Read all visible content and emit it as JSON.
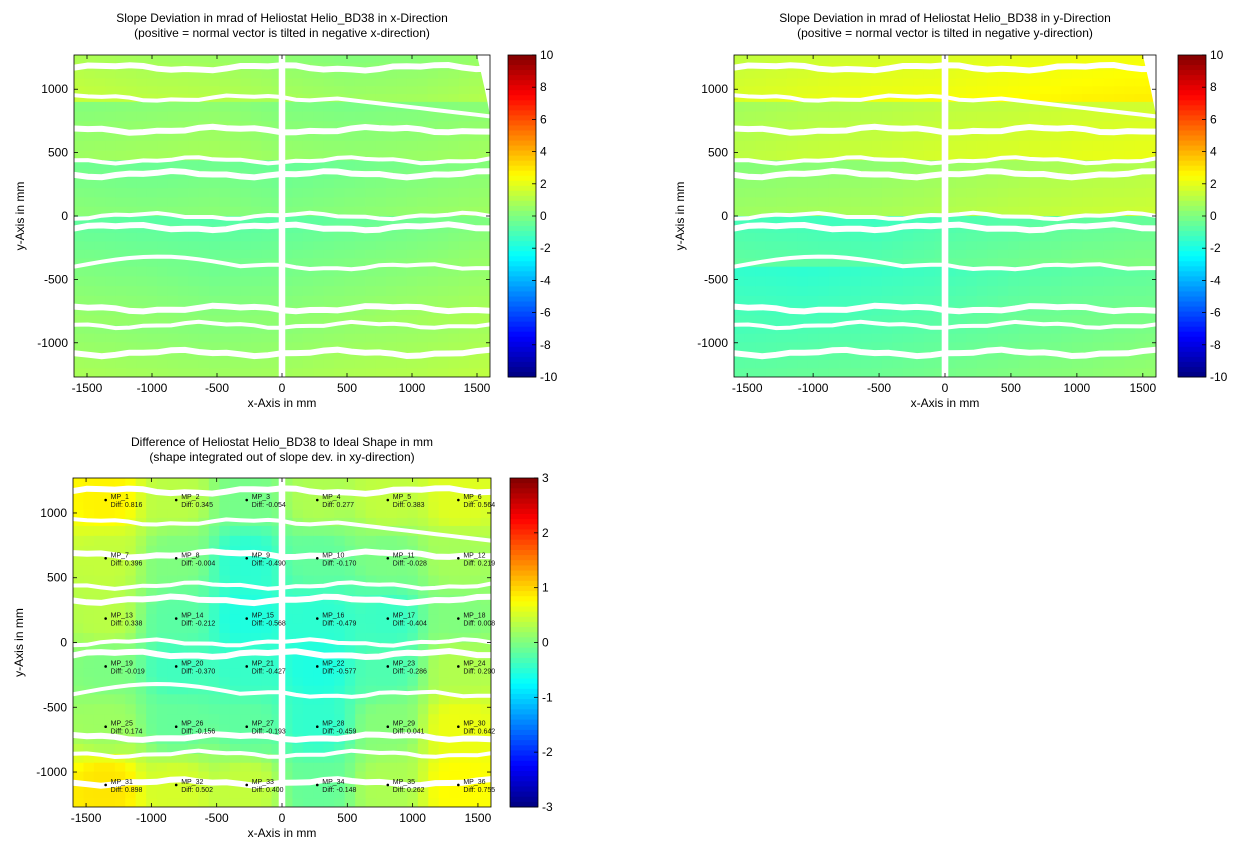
{
  "colors": {
    "white_gap": "#ffffff",
    "frame": "#000000"
  },
  "chart_data": [
    {
      "type": "heatmap",
      "title": "Slope Deviation in mrad of Heliostat Helio_BD38 in x-Direction",
      "subtitle": "(positive = normal vector is tilted in negative x-direction)",
      "xlabel": "x-Axis in mm",
      "ylabel": "y-Axis in mm",
      "xlim": [
        -1600,
        1600
      ],
      "ylim": [
        -1270,
        1270
      ],
      "xticks": [
        -1500,
        -1000,
        -500,
        0,
        500,
        1000,
        1500
      ],
      "yticks": [
        1000,
        500,
        0,
        -500,
        -1000
      ],
      "colorbar": {
        "min": -10,
        "max": 10,
        "ticks": [
          10,
          8,
          6,
          4,
          2,
          0,
          -2,
          -4,
          -6,
          -8,
          -10
        ]
      },
      "facet_values": [
        [
          1.2,
          1.0,
          0.9,
          0.6,
          0.4,
          0.5,
          0.8
        ],
        [
          0.4,
          0.5,
          0.6,
          0.3,
          0.2,
          0.3,
          0.5
        ],
        [
          0.0,
          -0.1,
          0.0,
          -0.2,
          0.0,
          0.2,
          0.4
        ],
        [
          -0.3,
          -0.4,
          -0.5,
          -0.4,
          -0.2,
          0.0,
          0.3
        ],
        [
          0.3,
          0.2,
          0.0,
          0.1,
          0.3,
          0.5,
          0.7
        ],
        [
          0.6,
          0.5,
          0.4,
          0.5,
          0.7,
          0.8,
          1.0
        ]
      ]
    },
    {
      "type": "heatmap",
      "title": "Slope Deviation in mrad of Heliostat Helio_BD38 in y-Direction",
      "subtitle": "(positive = normal vector is tilted in negative y-direction)",
      "xlabel": "x-Axis in mm",
      "ylabel": "y-Axis in mm",
      "xlim": [
        -1600,
        1600
      ],
      "ylim": [
        -1270,
        1270
      ],
      "xticks": [
        -1500,
        -1000,
        -500,
        0,
        500,
        1000,
        1500
      ],
      "yticks": [
        1000,
        500,
        0,
        -500,
        -1000
      ],
      "colorbar": {
        "min": -10,
        "max": 10,
        "ticks": [
          10,
          8,
          6,
          4,
          2,
          0,
          -2,
          -4,
          -6,
          -8,
          -10
        ]
      },
      "facet_values": [
        [
          1.6,
          1.8,
          2.0,
          2.1,
          2.3,
          2.5,
          2.6
        ],
        [
          1.0,
          1.2,
          1.3,
          1.5,
          1.6,
          1.8,
          1.9
        ],
        [
          0.4,
          0.5,
          0.6,
          0.8,
          1.0,
          1.2,
          1.3
        ],
        [
          -0.8,
          -0.9,
          -1.0,
          -0.7,
          -0.5,
          -0.3,
          -0.2
        ],
        [
          -1.2,
          -1.3,
          -1.1,
          -0.9,
          -0.6,
          -0.4,
          -0.3
        ],
        [
          -0.8,
          -0.7,
          -0.6,
          -0.4,
          -0.2,
          0.0,
          0.2
        ]
      ]
    },
    {
      "type": "heatmap",
      "title": "Difference of Heliostat Helio_BD38 to Ideal Shape in mm",
      "subtitle": "(shape integrated out of slope dev. in xy-direction)",
      "xlabel": "x-Axis in mm",
      "ylabel": "y-Axis in mm",
      "xlim": [
        -1600,
        1600
      ],
      "ylim": [
        -1270,
        1270
      ],
      "xticks": [
        -1500,
        -1000,
        -500,
        0,
        500,
        1000,
        1500
      ],
      "yticks": [
        1000,
        500,
        0,
        -500,
        -1000
      ],
      "colorbar": {
        "min": -3,
        "max": 3,
        "ticks": [
          3,
          2,
          1,
          0,
          -1,
          -2,
          -3
        ]
      },
      "measurement_points": [
        {
          "name": "MP_1",
          "diff": "Diff: 0.816",
          "x": -1350,
          "y": 1100
        },
        {
          "name": "MP_2",
          "diff": "Diff: 0.345",
          "x": -810,
          "y": 1100
        },
        {
          "name": "MP_3",
          "diff": "Diff: -0.054",
          "x": -270,
          "y": 1100
        },
        {
          "name": "MP_4",
          "diff": "Diff: 0.277",
          "x": 270,
          "y": 1100
        },
        {
          "name": "MP_5",
          "diff": "Diff: 0.383",
          "x": 810,
          "y": 1100
        },
        {
          "name": "MP_6",
          "diff": "Diff: 0.564",
          "x": 1350,
          "y": 1100
        },
        {
          "name": "MP_7",
          "diff": "Diff: 0.396",
          "x": -1350,
          "y": 650
        },
        {
          "name": "MP_8",
          "diff": "Diff: -0.004",
          "x": -810,
          "y": 650
        },
        {
          "name": "MP_9",
          "diff": "Diff: -0.490",
          "x": -270,
          "y": 650
        },
        {
          "name": "MP_10",
          "diff": "Diff: -0.170",
          "x": 270,
          "y": 650
        },
        {
          "name": "MP_11",
          "diff": "Diff: -0.028",
          "x": 810,
          "y": 650
        },
        {
          "name": "MP_12",
          "diff": "Diff: 0.219",
          "x": 1350,
          "y": 650
        },
        {
          "name": "MP_13",
          "diff": "Diff: 0.338",
          "x": -1350,
          "y": 185
        },
        {
          "name": "MP_14",
          "diff": "Diff: -0.212",
          "x": -810,
          "y": 185
        },
        {
          "name": "MP_15",
          "diff": "Diff: -0.568",
          "x": -270,
          "y": 185
        },
        {
          "name": "MP_16",
          "diff": "Diff: -0.479",
          "x": 270,
          "y": 185
        },
        {
          "name": "MP_17",
          "diff": "Diff: -0.404",
          "x": 810,
          "y": 185
        },
        {
          "name": "MP_18",
          "diff": "Diff: 0.008",
          "x": 1350,
          "y": 185
        },
        {
          "name": "MP_19",
          "diff": "Diff: -0.019",
          "x": -1350,
          "y": -185
        },
        {
          "name": "MP_20",
          "diff": "Diff: -0.370",
          "x": -810,
          "y": -185
        },
        {
          "name": "MP_21",
          "diff": "Diff: -0.427",
          "x": -270,
          "y": -185
        },
        {
          "name": "MP_22",
          "diff": "Diff: -0.577",
          "x": 270,
          "y": -185
        },
        {
          "name": "MP_23",
          "diff": "Diff: -0.286",
          "x": 810,
          "y": -185
        },
        {
          "name": "MP_24",
          "diff": "Diff: 0.290",
          "x": 1350,
          "y": -185
        },
        {
          "name": "MP_25",
          "diff": "Diff: 0.174",
          "x": -1350,
          "y": -650
        },
        {
          "name": "MP_26",
          "diff": "Diff: -0.156",
          "x": -810,
          "y": -650
        },
        {
          "name": "MP_27",
          "diff": "Diff: -0.193",
          "x": -270,
          "y": -650
        },
        {
          "name": "MP_28",
          "diff": "Diff: -0.459",
          "x": 270,
          "y": -650
        },
        {
          "name": "MP_29",
          "diff": "Diff: 0.041",
          "x": 810,
          "y": -650
        },
        {
          "name": "MP_30",
          "diff": "Diff: 0.642",
          "x": 1350,
          "y": -650
        },
        {
          "name": "MP_31",
          "diff": "Diff: 0.898",
          "x": -1350,
          "y": -1100
        },
        {
          "name": "MP_32",
          "diff": "Diff: 0.502",
          "x": -810,
          "y": -1100
        },
        {
          "name": "MP_33",
          "diff": "Diff: 0.400",
          "x": -270,
          "y": -1100
        },
        {
          "name": "MP_34",
          "diff": "Diff: -0.148",
          "x": 270,
          "y": -1100
        },
        {
          "name": "MP_35",
          "diff": "Diff: 0.262",
          "x": 810,
          "y": -1100
        },
        {
          "name": "MP_36",
          "diff": "Diff: 0.755",
          "x": 1350,
          "y": -1100
        }
      ]
    }
  ]
}
